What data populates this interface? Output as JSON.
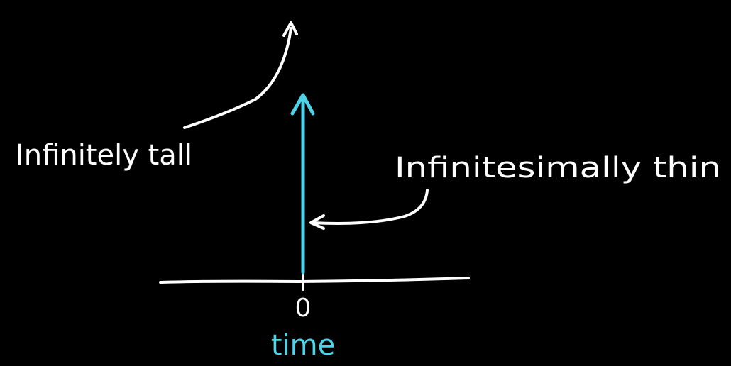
{
  "labels": {
    "tall": "Infinitely tall",
    "thin": "Infinitesimally thin",
    "origin": "0",
    "axis": "time"
  },
  "colors": {
    "background": "#000000",
    "ink": "#ffffff",
    "accent": "#4fd3e8"
  }
}
